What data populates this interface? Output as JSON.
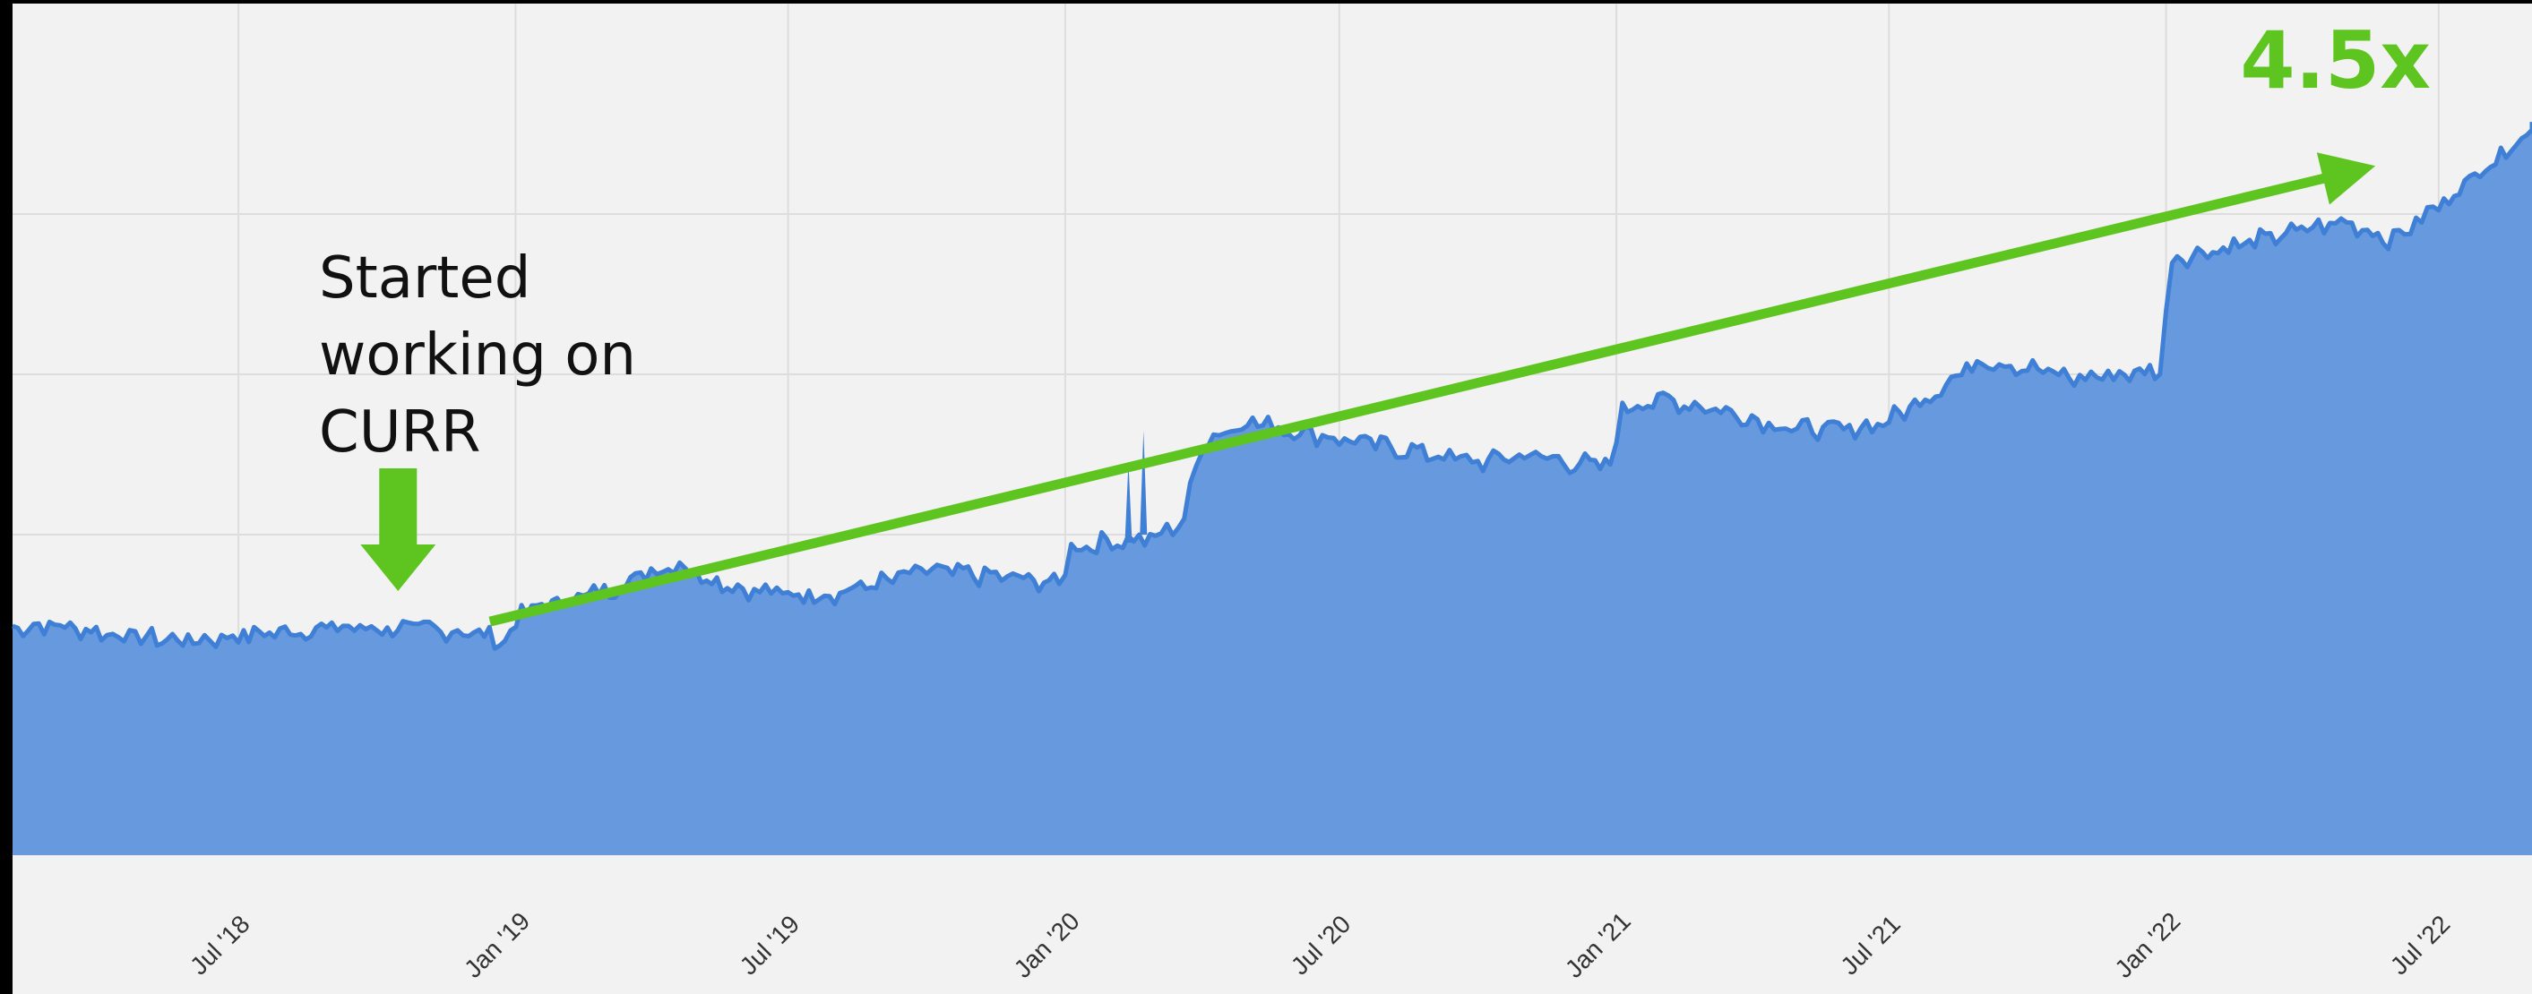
{
  "chart_data": {
    "type": "area",
    "title": "",
    "xlabel": "",
    "ylabel": "",
    "x_ticks": [
      "Jul '18",
      "Jan '19",
      "Jul '19",
      "Jan '20",
      "Jul '20",
      "Jan '21",
      "Jul '21",
      "Jan '22",
      "Jul '22"
    ],
    "y_ticks_visible": false,
    "grid": true,
    "ylim": [
      0,
      1
    ],
    "series": [
      {
        "color": "#3f7fd6",
        "fill": "#6699dd",
        "x": [
          "2018-02-01",
          "2018-03-01",
          "2018-04-01",
          "2018-05-01",
          "2018-06-01",
          "2018-07-01",
          "2018-08-01",
          "2018-09-01",
          "2018-10-01",
          "2018-11-01",
          "2018-12-01",
          "2018-12-25",
          "2019-01-05",
          "2019-02-01",
          "2019-03-01",
          "2019-04-01",
          "2019-04-20",
          "2019-05-01",
          "2019-06-01",
          "2019-07-01",
          "2019-08-01",
          "2019-09-01",
          "2019-10-01",
          "2019-11-01",
          "2019-12-01",
          "2019-12-28",
          "2020-01-05",
          "2020-02-01",
          "2020-03-01",
          "2020-03-20",
          "2020-04-01",
          "2020-05-01",
          "2020-06-01",
          "2020-07-01",
          "2020-08-01",
          "2020-09-01",
          "2020-10-01",
          "2020-11-01",
          "2020-12-01",
          "2020-12-28",
          "2021-01-05",
          "2021-02-01",
          "2021-03-01",
          "2021-04-01",
          "2021-05-01",
          "2021-06-01",
          "2021-07-01",
          "2021-08-01",
          "2021-09-01",
          "2021-10-01",
          "2021-11-01",
          "2021-12-01",
          "2021-12-28",
          "2022-01-05",
          "2022-02-01",
          "2022-03-01",
          "2022-04-01",
          "2022-05-01",
          "2022-06-01",
          "2022-07-01",
          "2022-08-01",
          "2022-09-01"
        ],
        "values": [
          0.285,
          0.287,
          0.278,
          0.271,
          0.268,
          0.274,
          0.279,
          0.284,
          0.283,
          0.282,
          0.279,
          0.267,
          0.302,
          0.318,
          0.329,
          0.355,
          0.365,
          0.352,
          0.332,
          0.325,
          0.327,
          0.34,
          0.355,
          0.35,
          0.345,
          0.338,
          0.383,
          0.392,
          0.395,
          0.42,
          0.516,
          0.542,
          0.53,
          0.52,
          0.51,
          0.5,
          0.49,
          0.5,
          0.49,
          0.485,
          0.559,
          0.568,
          0.56,
          0.545,
          0.532,
          0.53,
          0.542,
          0.58,
          0.62,
          0.608,
          0.595,
          0.6,
          0.605,
          0.745,
          0.755,
          0.765,
          0.78,
          0.79,
          0.768,
          0.81,
          0.86,
          0.905
        ]
      }
    ],
    "annotations": [
      {
        "text_lines": [
          "Started",
          "working on",
          "CURR"
        ],
        "x": "2018-10-15"
      },
      {
        "text": "4.5x",
        "type": "trend-arrow",
        "x_start": "2018-12-15",
        "y_start": 0.325,
        "x_end": "2022-05-20",
        "y_end": 0.86
      }
    ],
    "colors": {
      "arrow": "#5ec41f",
      "area_fill": "#6699dd",
      "area_line": "#3f7fd6",
      "plot_bg": "#f2f2f2",
      "grid": "#dddddd"
    }
  }
}
